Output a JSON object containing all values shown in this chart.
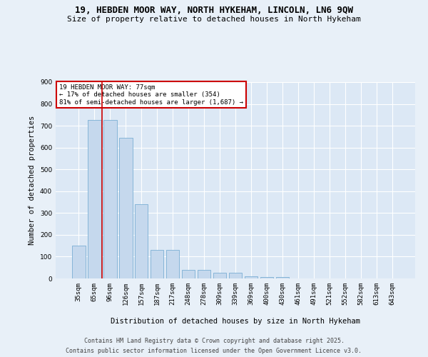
{
  "title_line1": "19, HEBDEN MOOR WAY, NORTH HYKEHAM, LINCOLN, LN6 9QW",
  "title_line2": "Size of property relative to detached houses in North Hykeham",
  "xlabel": "Distribution of detached houses by size in North Hykeham",
  "ylabel": "Number of detached properties",
  "categories": [
    "35sqm",
    "65sqm",
    "96sqm",
    "126sqm",
    "157sqm",
    "187sqm",
    "217sqm",
    "248sqm",
    "278sqm",
    "309sqm",
    "339sqm",
    "369sqm",
    "400sqm",
    "430sqm",
    "461sqm",
    "491sqm",
    "521sqm",
    "552sqm",
    "582sqm",
    "613sqm",
    "643sqm"
  ],
  "values": [
    150,
    725,
    725,
    645,
    340,
    130,
    130,
    40,
    40,
    27,
    25,
    10,
    5,
    5,
    0,
    0,
    0,
    0,
    0,
    0,
    0
  ],
  "bar_color": "#c5d8ed",
  "bar_edge_color": "#7aafd4",
  "vline_x": 1.5,
  "vline_color": "#cc0000",
  "annotation_text": "19 HEBDEN MOOR WAY: 77sqm\n← 17% of detached houses are smaller (354)\n81% of semi-detached houses are larger (1,687) →",
  "annotation_box_color": "#cc0000",
  "ylim": [
    0,
    900
  ],
  "yticks": [
    0,
    100,
    200,
    300,
    400,
    500,
    600,
    700,
    800,
    900
  ],
  "bg_color": "#e8f0f8",
  "plot_bg_color": "#dce8f5",
  "footer_line1": "Contains HM Land Registry data © Crown copyright and database right 2025.",
  "footer_line2": "Contains public sector information licensed under the Open Government Licence v3.0.",
  "title_fontsize": 9,
  "subtitle_fontsize": 8,
  "axis_label_fontsize": 7.5,
  "tick_fontsize": 6.5,
  "annotation_fontsize": 6.5,
  "footer_fontsize": 6
}
